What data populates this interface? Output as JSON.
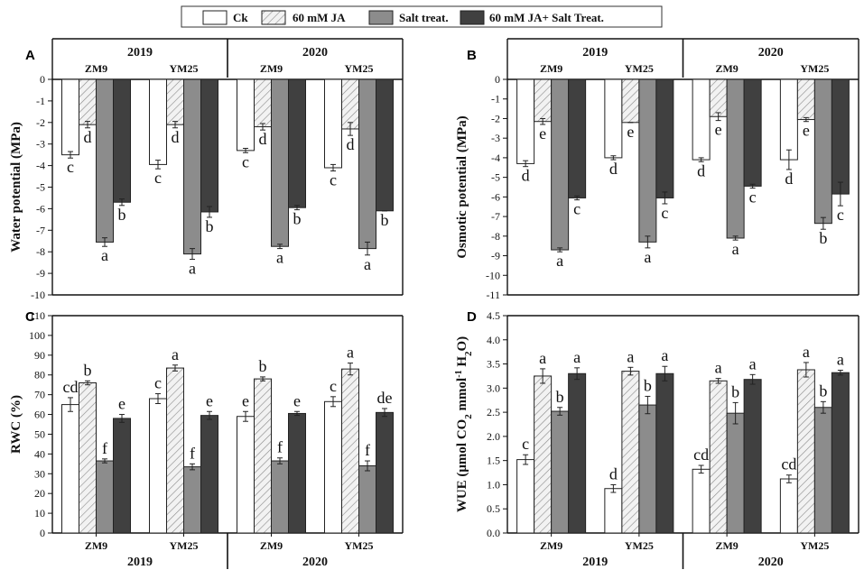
{
  "legend": {
    "items": [
      {
        "label": "Ck",
        "style": "white"
      },
      {
        "label": "60 mM JA",
        "style": "hatch"
      },
      {
        "label": "Salt treat.",
        "style": "gray"
      },
      {
        "label": "60 mM JA+ Salt Treat.",
        "style": "dark"
      }
    ]
  },
  "colors": {
    "white": "#ffffff",
    "gray": "#8c8c8c",
    "dark": "#404040",
    "hatch_bg": "#f2f2f2",
    "hatch_line": "#888888"
  },
  "chart_data": [
    {
      "id": "A",
      "type": "bar",
      "letter": "A",
      "ylabel": "Water potential (MPa)",
      "ylim": [
        -10,
        0
      ],
      "yticks": [
        0,
        -1,
        -2,
        -3,
        -4,
        -5,
        -6,
        -7,
        -8,
        -9,
        -10
      ],
      "year_labels": [
        "2019",
        "2020"
      ],
      "groups": [
        "ZM9",
        "YM25",
        "ZM9",
        "YM25"
      ],
      "series": [
        {
          "name": "Ck",
          "values": [
            -3.5,
            -3.95,
            -3.3,
            -4.1
          ],
          "errors": [
            0.15,
            0.2,
            0.1,
            0.15
          ],
          "letters": [
            "c",
            "c",
            "c",
            "c"
          ]
        },
        {
          "name": "60 mM JA",
          "values": [
            -2.1,
            -2.1,
            -2.2,
            -2.3
          ],
          "errors": [
            0.15,
            0.15,
            0.15,
            0.3
          ],
          "letters": [
            "d",
            "d",
            "d",
            "d"
          ]
        },
        {
          "name": "Salt treat.",
          "values": [
            -7.55,
            -8.1,
            -7.75,
            -7.85
          ],
          "errors": [
            0.2,
            0.25,
            0.1,
            0.3
          ],
          "letters": [
            "a",
            "a",
            "a",
            "a"
          ]
        },
        {
          "name": "60 mM JA+ Salt Treat.",
          "values": [
            -5.7,
            -6.15,
            -5.95,
            -6.1
          ],
          "errors": [
            0.15,
            0.25,
            0.1,
            0.0
          ],
          "letters": [
            "b",
            "b",
            "b",
            "b"
          ]
        }
      ]
    },
    {
      "id": "B",
      "type": "bar",
      "letter": "B",
      "ylabel": "Osmotic potential (MPa)",
      "ylim": [
        -11,
        0
      ],
      "yticks": [
        0,
        -1,
        -2,
        -3,
        -4,
        -5,
        -6,
        -7,
        -8,
        -9,
        -10,
        -11
      ],
      "year_labels": [
        "2019",
        "2020"
      ],
      "groups": [
        "ZM9",
        "YM25",
        "ZM9",
        "YM25"
      ],
      "series": [
        {
          "name": "Ck",
          "values": [
            -4.3,
            -4.0,
            -4.1,
            -4.1
          ],
          "errors": [
            0.15,
            0.1,
            0.1,
            0.5
          ],
          "letters": [
            "d",
            "d",
            "d",
            "d"
          ]
        },
        {
          "name": "60 mM JA",
          "values": [
            -2.15,
            -2.2,
            -1.9,
            -2.05
          ],
          "errors": [
            0.15,
            0.0,
            0.2,
            0.1
          ],
          "letters": [
            "e",
            "e",
            "e",
            "e"
          ]
        },
        {
          "name": "Salt treat.",
          "values": [
            -8.7,
            -8.3,
            -8.1,
            -7.35
          ],
          "errors": [
            0.1,
            0.3,
            0.1,
            0.3
          ],
          "letters": [
            "a",
            "a",
            "a",
            "b"
          ]
        },
        {
          "name": "60 mM JA+ Salt Treat.",
          "values": [
            -6.05,
            -6.05,
            -5.45,
            -5.85
          ],
          "errors": [
            0.1,
            0.3,
            0.1,
            0.6
          ],
          "letters": [
            "c",
            "c",
            "c",
            "c"
          ]
        }
      ]
    },
    {
      "id": "C",
      "type": "bar",
      "letter": "C",
      "ylabel": "RWC (%)",
      "ylim": [
        0,
        110
      ],
      "yticks": [
        0,
        10,
        20,
        30,
        40,
        50,
        60,
        70,
        80,
        90,
        100,
        110
      ],
      "year_labels": [
        "2019",
        "2020"
      ],
      "groups": [
        "ZM9",
        "YM25",
        "ZM9",
        "YM25"
      ],
      "series": [
        {
          "name": "Ck",
          "values": [
            65,
            68,
            59,
            66.5
          ],
          "errors": [
            3.5,
            2.5,
            2.5,
            2.5
          ],
          "letters": [
            "cd",
            "c",
            "e",
            "c"
          ]
        },
        {
          "name": "60 mM JA",
          "values": [
            76,
            83.5,
            78,
            83
          ],
          "errors": [
            1.0,
            1.5,
            1.0,
            3.0
          ],
          "letters": [
            "b",
            "a",
            "b",
            "a"
          ]
        },
        {
          "name": "Salt treat.",
          "values": [
            36.5,
            33.5,
            36.5,
            34
          ],
          "errors": [
            1.0,
            1.5,
            1.5,
            2.5
          ],
          "letters": [
            "f",
            "f",
            "f",
            "f"
          ]
        },
        {
          "name": "60 mM JA+ Salt Treat.",
          "values": [
            58,
            59.5,
            60.5,
            61
          ],
          "errors": [
            2.0,
            2.0,
            1.0,
            2.0
          ],
          "letters": [
            "e",
            "e",
            "e",
            "de"
          ]
        }
      ]
    },
    {
      "id": "D",
      "type": "bar",
      "letter": "D",
      "ylabel_parts": [
        "WUE (μmol CO",
        "2",
        " mmol",
        "-1",
        " H",
        "2",
        "O)"
      ],
      "ylim": [
        0,
        4.5
      ],
      "yticks": [
        0.0,
        0.5,
        1.0,
        1.5,
        2.0,
        2.5,
        3.0,
        3.5,
        4.0,
        4.5
      ],
      "ytick_labels": [
        "0.0",
        "0.5",
        "1.0",
        "1.5",
        "2.0",
        "2.5",
        "3.0",
        "3.5",
        "4.0",
        "4.5"
      ],
      "year_labels": [
        "2019",
        "2020"
      ],
      "groups": [
        "ZM9",
        "YM25",
        "ZM9",
        "YM25"
      ],
      "series": [
        {
          "name": "Ck",
          "values": [
            1.52,
            0.92,
            1.32,
            1.12
          ],
          "errors": [
            0.1,
            0.08,
            0.08,
            0.08
          ],
          "letters": [
            "c",
            "d",
            "cd",
            "cd"
          ]
        },
        {
          "name": "60 mM JA",
          "values": [
            3.25,
            3.35,
            3.15,
            3.38
          ],
          "errors": [
            0.15,
            0.08,
            0.05,
            0.15
          ],
          "letters": [
            "a",
            "a",
            "a",
            "a"
          ]
        },
        {
          "name": "Salt treat.",
          "values": [
            2.52,
            2.65,
            2.48,
            2.6
          ],
          "errors": [
            0.08,
            0.18,
            0.22,
            0.12
          ],
          "letters": [
            "b",
            "b",
            "b",
            "b"
          ]
        },
        {
          "name": "60 mM JA+ Salt Treat.",
          "values": [
            3.3,
            3.3,
            3.18,
            3.32
          ],
          "errors": [
            0.12,
            0.15,
            0.1,
            0.05
          ],
          "letters": [
            "a",
            "a",
            "a",
            "a"
          ]
        }
      ]
    }
  ]
}
